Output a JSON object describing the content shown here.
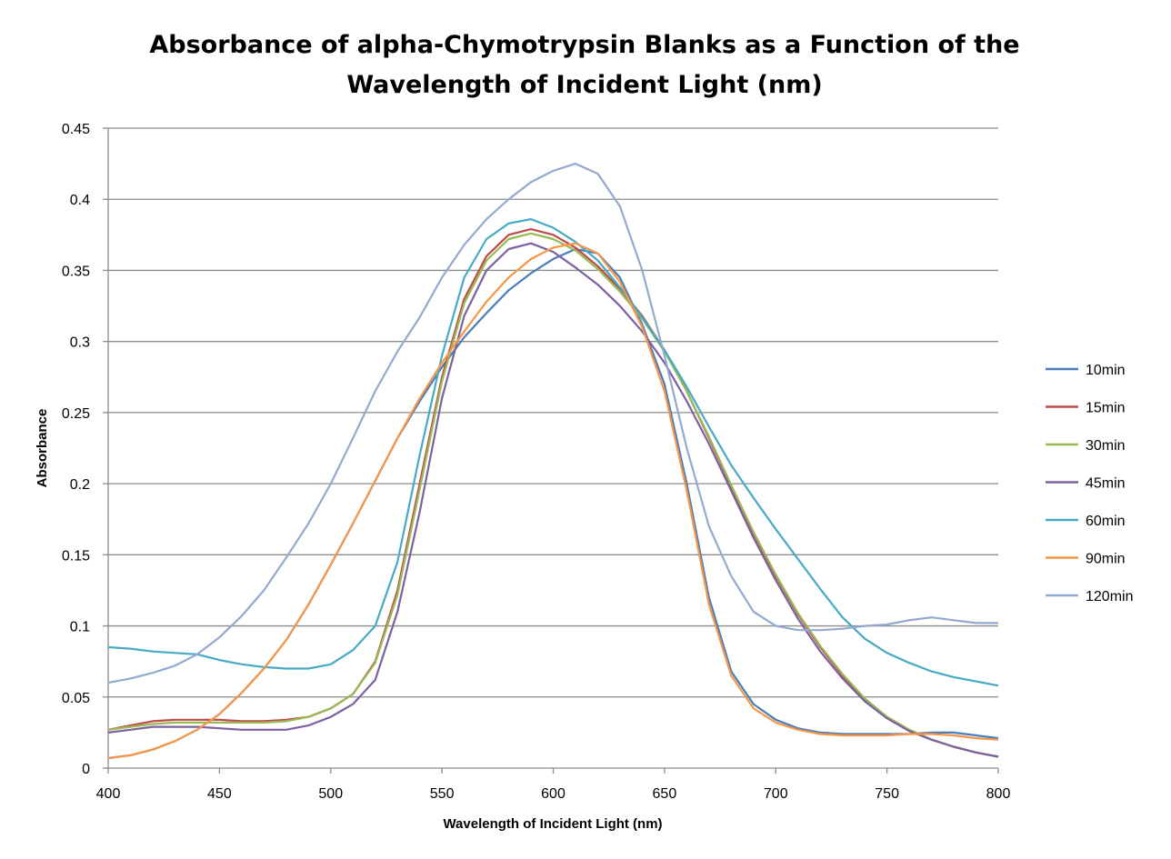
{
  "chart_data": {
    "type": "line",
    "title_lines": [
      "Absorbance of alpha-Chymotrypsin Blanks as a Function of the",
      "Wavelength of Incident Light (nm)"
    ],
    "xlabel": "Wavelength of Incident Light (nm)",
    "ylabel": "Absorbance",
    "xlim": [
      400,
      800
    ],
    "ylim": [
      0,
      0.45
    ],
    "xticks": [
      400,
      450,
      500,
      550,
      600,
      650,
      700,
      750,
      800
    ],
    "yticks": [
      0,
      0.05,
      0.1,
      0.15,
      0.2,
      0.25,
      0.3,
      0.35,
      0.4,
      0.45
    ],
    "ytick_labels": [
      "0",
      "0.05",
      "0.1",
      "0.15",
      "0.2",
      "0.25",
      "0.3",
      "0.35",
      "0.4",
      "0.45"
    ],
    "grid": "horizontal",
    "legend_position": "right",
    "x": [
      400,
      410,
      420,
      430,
      440,
      450,
      460,
      470,
      480,
      490,
      500,
      510,
      520,
      530,
      540,
      550,
      560,
      570,
      580,
      590,
      600,
      610,
      620,
      630,
      640,
      650,
      660,
      670,
      680,
      690,
      700,
      710,
      720,
      730,
      740,
      750,
      760,
      770,
      780,
      790,
      800
    ],
    "series": [
      {
        "name": "10min",
        "color": "#4A7EBB",
        "values": [
          0.007,
          0.009,
          0.013,
          0.019,
          0.027,
          0.038,
          0.053,
          0.07,
          0.09,
          0.115,
          0.143,
          0.172,
          0.202,
          0.232,
          0.258,
          0.282,
          0.303,
          0.32,
          0.336,
          0.348,
          0.358,
          0.365,
          0.362,
          0.345,
          0.312,
          0.27,
          0.2,
          0.12,
          0.068,
          0.045,
          0.034,
          0.028,
          0.025,
          0.024,
          0.024,
          0.024,
          0.024,
          0.025,
          0.025,
          0.023,
          0.021
        ]
      },
      {
        "name": "15min",
        "color": "#BE4B48",
        "values": [
          0.027,
          0.03,
          0.033,
          0.034,
          0.034,
          0.034,
          0.033,
          0.033,
          0.034,
          0.036,
          0.042,
          0.052,
          0.075,
          0.125,
          0.2,
          0.275,
          0.33,
          0.36,
          0.375,
          0.379,
          0.375,
          0.366,
          0.353,
          0.337,
          0.318,
          0.294,
          0.265,
          0.232,
          0.198,
          0.165,
          0.135,
          0.108,
          0.085,
          0.065,
          0.048,
          0.036,
          0.027,
          0.02,
          0.015,
          0.011,
          0.008
        ]
      },
      {
        "name": "30min",
        "color": "#98B954",
        "values": [
          0.027,
          0.029,
          0.031,
          0.032,
          0.032,
          0.032,
          0.032,
          0.032,
          0.033,
          0.036,
          0.042,
          0.052,
          0.074,
          0.122,
          0.196,
          0.272,
          0.327,
          0.357,
          0.372,
          0.376,
          0.372,
          0.364,
          0.351,
          0.335,
          0.316,
          0.293,
          0.265,
          0.233,
          0.199,
          0.166,
          0.136,
          0.109,
          0.086,
          0.066,
          0.049,
          0.036,
          0.027,
          0.02,
          0.015,
          0.011,
          0.008
        ]
      },
      {
        "name": "45min",
        "color": "#7D60A0",
        "values": [
          0.025,
          0.027,
          0.029,
          0.029,
          0.029,
          0.028,
          0.027,
          0.027,
          0.027,
          0.03,
          0.036,
          0.045,
          0.062,
          0.11,
          0.18,
          0.26,
          0.318,
          0.35,
          0.365,
          0.369,
          0.363,
          0.352,
          0.34,
          0.325,
          0.307,
          0.285,
          0.258,
          0.228,
          0.195,
          0.162,
          0.132,
          0.105,
          0.082,
          0.063,
          0.047,
          0.035,
          0.026,
          0.02,
          0.015,
          0.011,
          0.008
        ]
      },
      {
        "name": "60min",
        "color": "#46AAC5",
        "values": [
          0.085,
          0.084,
          0.082,
          0.081,
          0.08,
          0.076,
          0.073,
          0.071,
          0.07,
          0.07,
          0.073,
          0.083,
          0.1,
          0.145,
          0.22,
          0.29,
          0.345,
          0.372,
          0.383,
          0.386,
          0.38,
          0.37,
          0.357,
          0.338,
          0.317,
          0.294,
          0.268,
          0.24,
          0.213,
          0.19,
          0.168,
          0.147,
          0.126,
          0.106,
          0.091,
          0.081,
          0.074,
          0.068,
          0.064,
          0.061,
          0.058
        ]
      },
      {
        "name": "90min",
        "color": "#F79646",
        "values": [
          0.007,
          0.009,
          0.013,
          0.019,
          0.027,
          0.038,
          0.053,
          0.07,
          0.09,
          0.115,
          0.143,
          0.172,
          0.202,
          0.232,
          0.26,
          0.285,
          0.307,
          0.328,
          0.345,
          0.358,
          0.366,
          0.369,
          0.362,
          0.342,
          0.31,
          0.265,
          0.195,
          0.115,
          0.065,
          0.042,
          0.032,
          0.027,
          0.024,
          0.023,
          0.023,
          0.023,
          0.024,
          0.024,
          0.023,
          0.021,
          0.02
        ]
      },
      {
        "name": "120min",
        "color": "#93A9CF",
        "values": [
          0.06,
          0.063,
          0.067,
          0.072,
          0.08,
          0.092,
          0.107,
          0.125,
          0.148,
          0.172,
          0.2,
          0.232,
          0.265,
          0.293,
          0.317,
          0.345,
          0.368,
          0.386,
          0.4,
          0.412,
          0.42,
          0.425,
          0.418,
          0.395,
          0.35,
          0.29,
          0.225,
          0.17,
          0.135,
          0.11,
          0.1,
          0.097,
          0.097,
          0.098,
          0.1,
          0.101,
          0.104,
          0.106,
          0.104,
          0.102,
          0.102
        ]
      }
    ]
  }
}
